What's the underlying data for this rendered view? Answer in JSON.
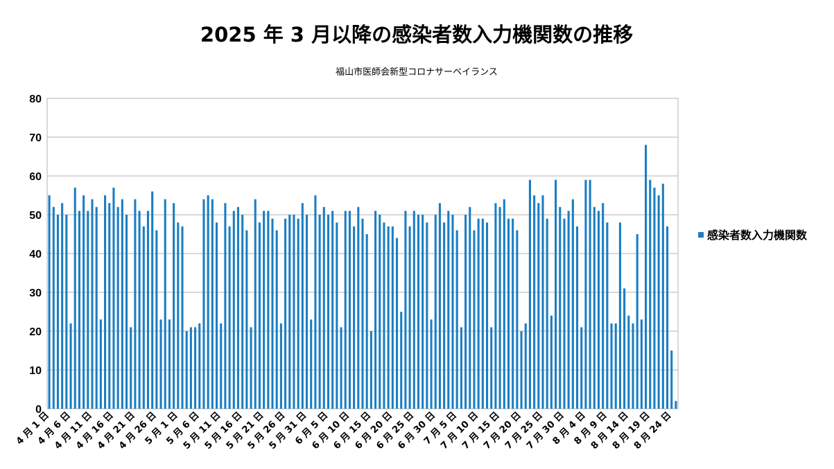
{
  "chart_data": {
    "type": "bar",
    "title": "2025 年 3 月以降の感染者数入力機関数の推移",
    "subtitle": "福山市医師会新型コロナサーベイランス",
    "ylim": [
      0,
      80
    ],
    "yticks": [
      0,
      10,
      20,
      30,
      40,
      50,
      60,
      70,
      80
    ],
    "grid": true,
    "legend_position": "right",
    "colors": {
      "bar": "#1b7ec3",
      "grid": "#b3b3b3"
    },
    "x_tick_labels": [
      "4 月 1 日",
      "4 月 6 日",
      "4 月 11 日",
      "4 月 16 日",
      "4 月 21 日",
      "4 月 26 日",
      "5 月 1 日",
      "5 月 6 日",
      "5 月 11 日",
      "5 月 16 日",
      "5 月 21 日",
      "5 月 26 日",
      "5 月 31 日",
      "6 月 5 日",
      "6 月 10 日",
      "6 月 15 日",
      "6 月 20 日",
      "6 月 25 日",
      "6 月 30 日",
      "7 月 5 日",
      "7 月 10 日",
      "7 月 15 日",
      "7 月 20 日",
      "7 月 25 日",
      "7 月 30 日",
      "8 月 4 日",
      "8 月 9 日",
      "8 月 14 日",
      "8 月 19 日",
      "8 月 24 日"
    ],
    "series": [
      {
        "name": "感染者数入力機関数",
        "values": [
          55,
          52,
          50,
          53,
          50,
          22,
          57,
          51,
          55,
          51,
          54,
          52,
          23,
          55,
          53,
          57,
          52,
          54,
          50,
          21,
          54,
          51,
          47,
          51,
          56,
          46,
          23,
          54,
          23,
          53,
          48,
          47,
          20,
          21,
          21,
          22,
          54,
          55,
          54,
          48,
          22,
          53,
          47,
          51,
          52,
          50,
          46,
          21,
          54,
          48,
          51,
          51,
          49,
          46,
          22,
          49,
          50,
          50,
          49,
          53,
          50,
          23,
          55,
          50,
          52,
          50,
          51,
          48,
          21,
          51,
          51,
          47,
          52,
          49,
          45,
          20,
          51,
          50,
          48,
          47,
          47,
          44,
          25,
          51,
          47,
          51,
          50,
          50,
          48,
          23,
          50,
          53,
          48,
          51,
          50,
          46,
          21,
          50,
          52,
          46,
          49,
          49,
          48,
          21,
          53,
          52,
          54,
          49,
          49,
          46,
          20,
          22,
          59,
          55,
          53,
          55,
          49,
          24,
          59,
          52,
          49,
          51,
          54,
          47,
          21,
          59,
          59,
          52,
          51,
          53,
          48,
          22,
          22,
          48,
          31,
          24,
          22,
          45,
          23,
          68,
          59,
          57,
          55,
          58,
          47,
          15,
          2
        ]
      }
    ]
  }
}
